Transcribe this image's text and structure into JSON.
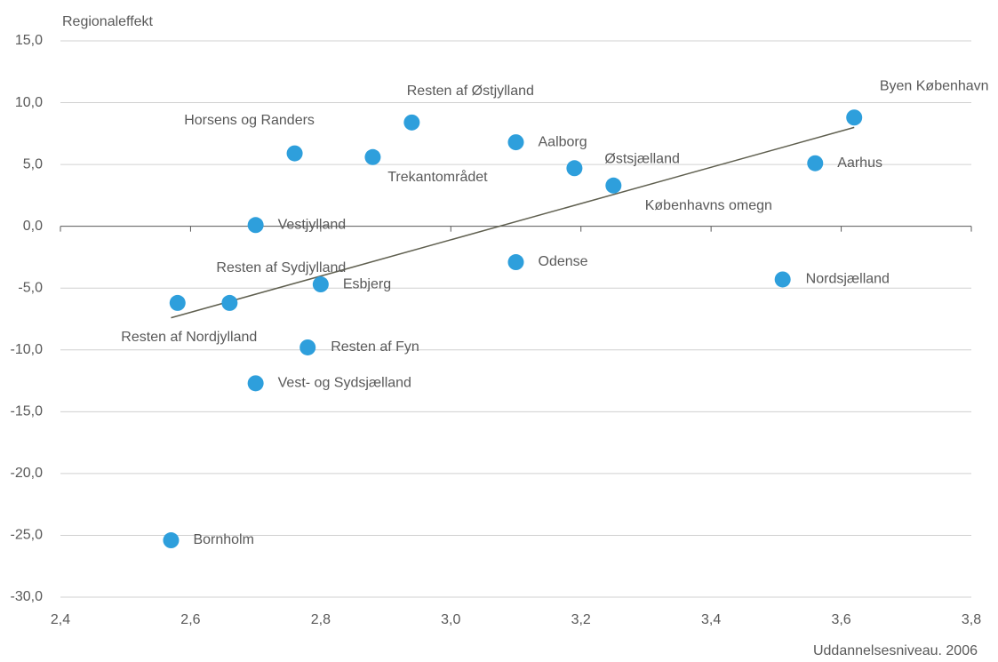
{
  "chart_data": {
    "type": "scatter",
    "y_label": "Regionaleffekt",
    "x_label": "Uddannelsesniveau. 2006",
    "labels": [
      "Bornholm",
      "Resten af Nordjylland",
      "Resten af Sydjylland",
      "Vestjylland",
      "Vest- og Sydsjælland",
      "Horsens og Randers",
      "Esbjerg",
      "Resten af Fyn",
      "Trekantområdet",
      "Resten af Østjylland",
      "Aalborg",
      "Odense",
      "Østsjælland",
      "Københavns omegn",
      "Nordsjælland",
      "Aarhus",
      "Byen København"
    ],
    "x": [
      2.57,
      2.58,
      2.66,
      2.7,
      2.7,
      2.76,
      2.8,
      2.78,
      2.88,
      2.94,
      3.1,
      3.1,
      3.19,
      3.25,
      3.51,
      3.56,
      3.62
    ],
    "values": [
      -25.4,
      -6.2,
      -6.2,
      0.1,
      -12.7,
      5.9,
      -4.7,
      -9.8,
      5.6,
      8.4,
      6.8,
      -2.9,
      4.7,
      3.3,
      -4.3,
      5.1,
      8.8
    ],
    "color": "#2e9fdc",
    "trend_line": {
      "x": [
        2.57,
        3.62
      ],
      "y": [
        -7.4,
        8.0
      ],
      "color": "#5f5f4f"
    },
    "xlim": [
      2.4,
      3.8
    ],
    "xticks": [
      {
        "value": 2.4,
        "label": "2,4"
      },
      {
        "value": 2.6,
        "label": "2,6"
      },
      {
        "value": 2.8,
        "label": "2,8"
      },
      {
        "value": 3.0,
        "label": "3,0"
      },
      {
        "value": 3.2,
        "label": "3,2"
      },
      {
        "value": 3.4,
        "label": "3,4"
      },
      {
        "value": 3.6,
        "label": "3,6"
      },
      {
        "value": 3.8,
        "label": "3,8"
      }
    ],
    "ylim": [
      -30,
      15
    ],
    "yticks": [
      {
        "value": -30,
        "label": "-30,0"
      },
      {
        "value": -25,
        "label": "-25,0"
      },
      {
        "value": -20,
        "label": "-20,0"
      },
      {
        "value": -15,
        "label": "-15,0"
      },
      {
        "value": -10,
        "label": "-10,0"
      },
      {
        "value": -5,
        "label": "-5,0"
      },
      {
        "value": 0,
        "label": "0,0"
      },
      {
        "value": 5,
        "label": "5,0"
      },
      {
        "value": 10,
        "label": "10,0"
      },
      {
        "value": 15,
        "label": "15,0"
      }
    ],
    "grid": true
  }
}
